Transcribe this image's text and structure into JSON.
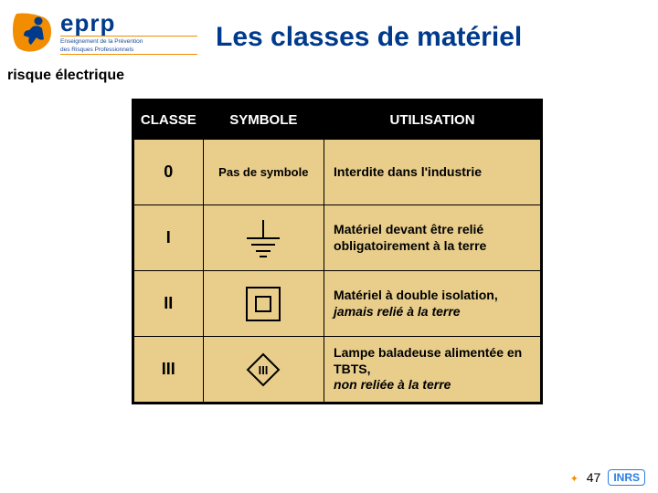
{
  "logo": {
    "main": "eprp",
    "sub_line1": "Enseignement de la Prévention",
    "sub_line2": "des Risques Professionnels",
    "icon_primary": "#f28c00",
    "icon_secondary": "#003a8c"
  },
  "title": "Les classes de matériel",
  "subtitle": "risque électrique",
  "table": {
    "background": "#e8cd8b",
    "border": "#000000",
    "header_bg": "#000000",
    "header_fg": "#ffffff",
    "headers": {
      "classe": "CLASSE",
      "symbole": "SYMBOLE",
      "utilisation": "UTILISATION"
    },
    "rows": [
      {
        "classe": "0",
        "symbole_type": "text",
        "symbole_text": "Pas de symbole",
        "utilisation": "Interdite dans l'industrie",
        "italic_suffix": ""
      },
      {
        "classe": "I",
        "symbole_type": "earth",
        "utilisation": "Matériel devant être relié obligatoirement à la terre",
        "italic_suffix": ""
      },
      {
        "classe": "II",
        "symbole_type": "double-square",
        "utilisation": "Matériel à double isolation,",
        "italic_suffix": "jamais relié à la terre"
      },
      {
        "classe": "III",
        "symbole_type": "diamond-iii",
        "utilisation": "Lampe baladeuse alimentée en TBTS,",
        "italic_suffix": "non reliée à la terre"
      }
    ]
  },
  "footer": {
    "page": "47",
    "brand": "INRS",
    "brand_color": "#2a7de1",
    "marker_color": "#f28c00"
  }
}
